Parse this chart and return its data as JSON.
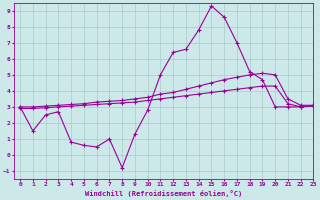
{
  "xlabel": "Windchill (Refroidissement éolien,°C)",
  "bg_color": "#cce8e8",
  "line_color": "#990099",
  "grid_color": "#aacccc",
  "xlim": [
    -0.5,
    23
  ],
  "ylim": [
    -1.5,
    9.5
  ],
  "xticks": [
    0,
    1,
    2,
    3,
    4,
    5,
    6,
    7,
    8,
    9,
    10,
    11,
    12,
    13,
    14,
    15,
    16,
    17,
    18,
    19,
    20,
    21,
    22,
    23
  ],
  "yticks": [
    -1,
    0,
    1,
    2,
    3,
    4,
    5,
    6,
    7,
    8,
    9
  ],
  "line1_x": [
    0,
    1,
    2,
    3,
    4,
    5,
    6,
    7,
    8,
    9,
    10,
    11,
    12,
    13,
    14,
    15,
    16,
    17,
    18,
    19,
    20,
    21,
    22,
    23
  ],
  "line1_y": [
    3.0,
    1.5,
    2.5,
    2.7,
    0.8,
    0.6,
    0.5,
    1.0,
    -0.8,
    1.3,
    2.8,
    5.0,
    6.4,
    6.6,
    7.8,
    9.3,
    8.6,
    7.0,
    5.2,
    4.7,
    3.0,
    3.0,
    3.0,
    3.1
  ],
  "line2_x": [
    0,
    1,
    2,
    3,
    4,
    5,
    6,
    7,
    8,
    9,
    10,
    11,
    12,
    13,
    14,
    15,
    16,
    17,
    18,
    19,
    20,
    21,
    22,
    23
  ],
  "line2_y": [
    3.0,
    3.0,
    3.05,
    3.1,
    3.15,
    3.2,
    3.3,
    3.35,
    3.4,
    3.5,
    3.6,
    3.8,
    3.9,
    4.1,
    4.3,
    4.5,
    4.7,
    4.85,
    5.0,
    5.1,
    5.0,
    3.5,
    3.1,
    3.1
  ],
  "line3_x": [
    0,
    1,
    2,
    3,
    4,
    5,
    6,
    7,
    8,
    9,
    10,
    11,
    12,
    13,
    14,
    15,
    16,
    17,
    18,
    19,
    20,
    21,
    22,
    23
  ],
  "line3_y": [
    2.9,
    2.9,
    2.95,
    3.0,
    3.05,
    3.1,
    3.15,
    3.2,
    3.25,
    3.3,
    3.4,
    3.5,
    3.6,
    3.7,
    3.8,
    3.9,
    4.0,
    4.1,
    4.2,
    4.3,
    4.3,
    3.2,
    3.0,
    3.05
  ]
}
